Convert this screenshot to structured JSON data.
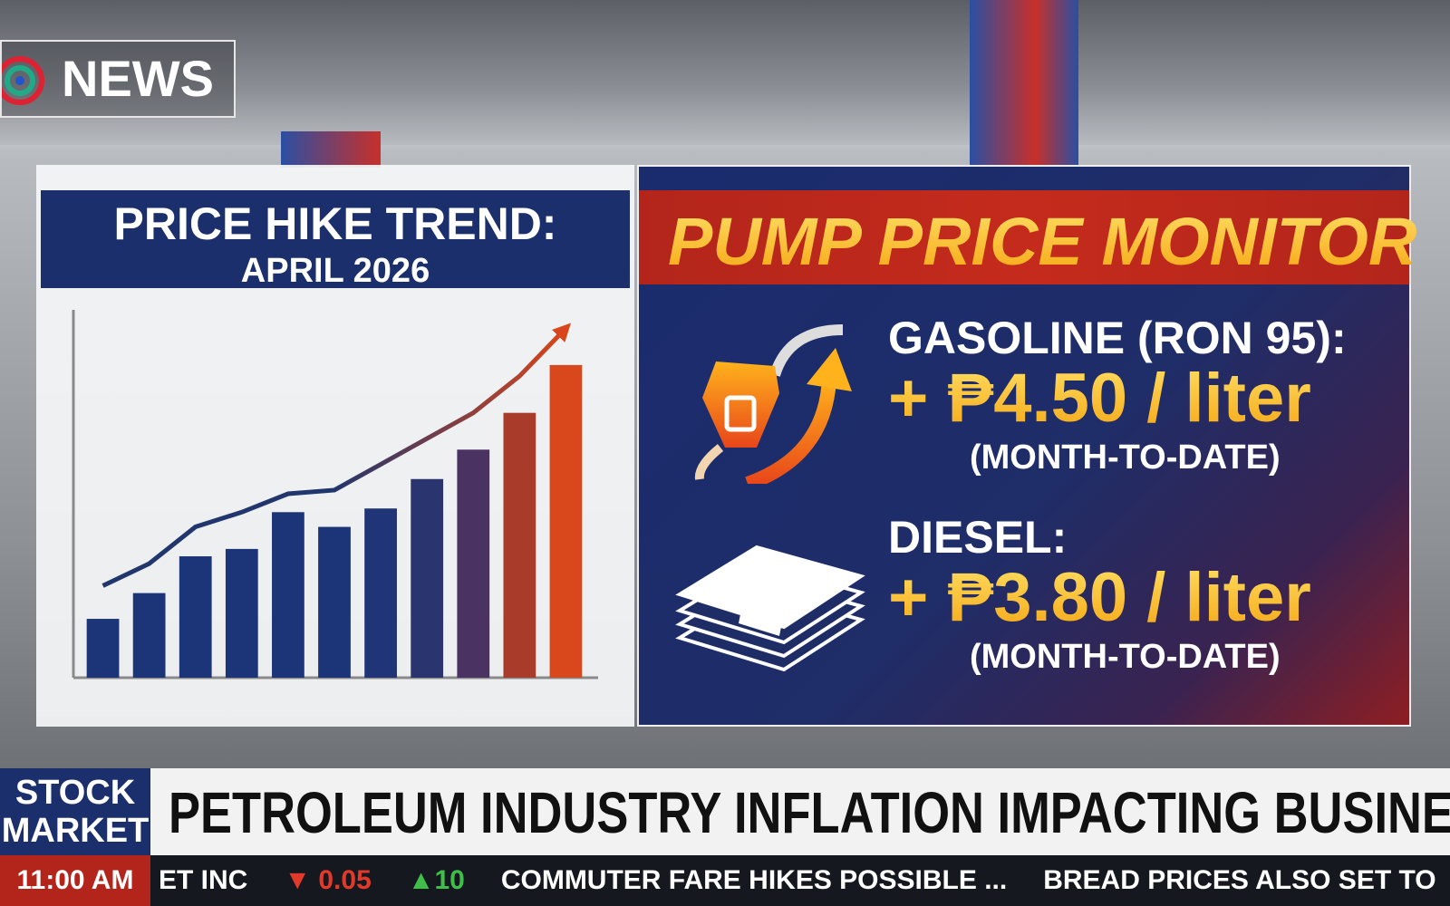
{
  "logo": "NEWS",
  "trend_chart": {
    "type": "bar",
    "title": "PRICE HIKE TREND:",
    "subtitle": "APRIL 2026",
    "values": [
      16,
      23,
      33,
      35,
      45,
      41,
      46,
      54,
      62,
      72,
      85
    ],
    "line": [
      25,
      31,
      41,
      45,
      50,
      51,
      58,
      65,
      72,
      82,
      95
    ],
    "ylim": [
      0,
      100
    ],
    "colors": [
      "#1c3578",
      "#1c3578",
      "#1c3578",
      "#1c3578",
      "#1c3578",
      "#1c3578",
      "#1f3577",
      "#2a3570",
      "#4a3262",
      "#a83b2a",
      "#d9471c"
    ],
    "line_color": "#22366e",
    "line_end_color": "#d9461b"
  },
  "monitor": {
    "title": "PUMP PRICE MONITOR",
    "items": [
      {
        "label": "GASOLINE (RON 95):",
        "change": "+ ₱4.50 / liter",
        "note": "(MONTH-TO-DATE)"
      },
      {
        "label": "DIESEL:",
        "change": "+ ₱3.80 / liter",
        "note": "(MONTH-TO-DATE)"
      }
    ]
  },
  "ticker": {
    "section": "STOCK MARKET",
    "headline": "PETROLEUM INDUSTRY INFLATION IMPACTING BUSINESSES...",
    "time": "11:00 AM",
    "items": [
      "ET INC",
      "▼ 0.05",
      "▲10",
      "COMMUTER FARE HIKES POSSIBLE ...",
      "BREAD PRICES ALSO SET TO"
    ]
  }
}
